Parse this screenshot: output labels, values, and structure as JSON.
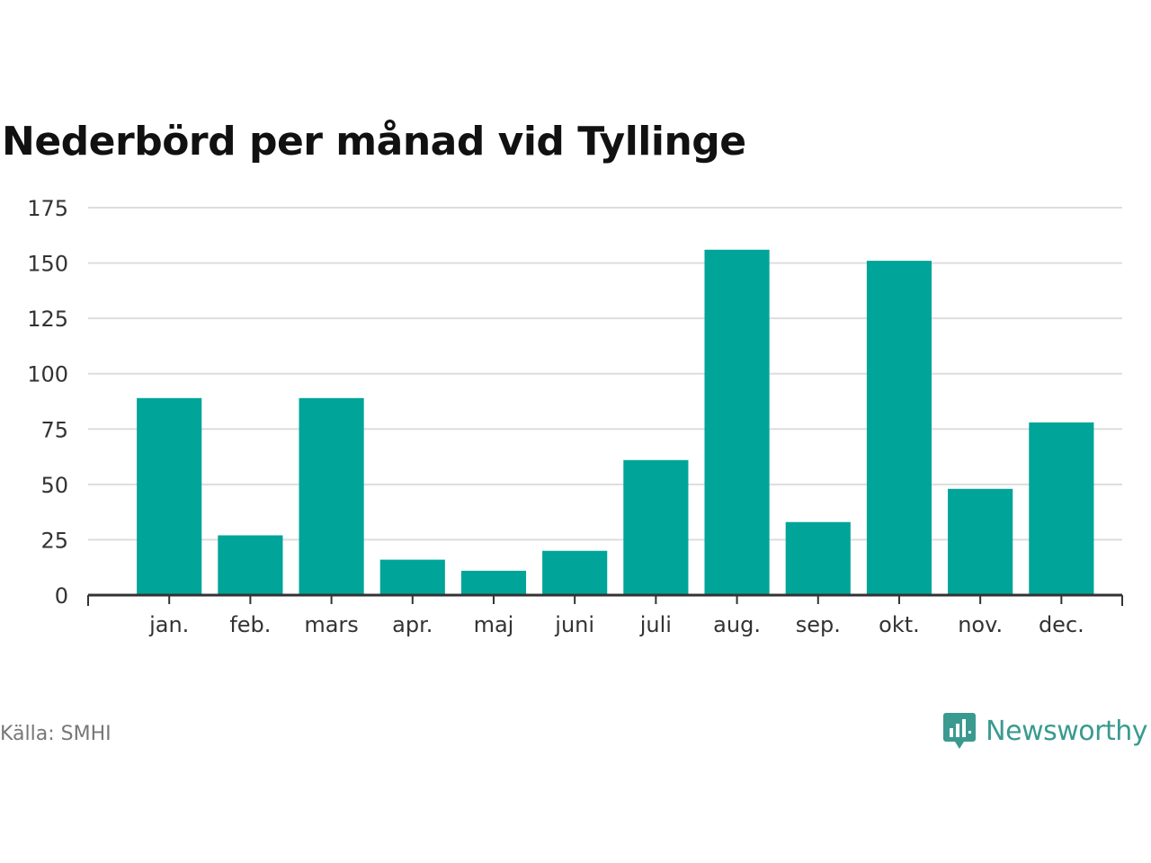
{
  "chart_data": {
    "type": "bar",
    "title": "Nederbörd per månad vid Tyllinge",
    "categories": [
      "jan.",
      "feb.",
      "mars",
      "apr.",
      "maj",
      "juni",
      "juli",
      "aug.",
      "sep.",
      "okt.",
      "nov.",
      "dec."
    ],
    "values": [
      89,
      27,
      89,
      16,
      11,
      20,
      61,
      156,
      33,
      151,
      48,
      78
    ],
    "yticks": [
      0,
      25,
      50,
      75,
      100,
      125,
      150,
      175
    ],
    "ylim": [
      0,
      175
    ],
    "xlabel": "",
    "ylabel": "",
    "grid": true,
    "bar_color": "#00a499",
    "grid_color": "#dddddd",
    "axis_color": "#333333"
  },
  "footer": {
    "source": "Källa: SMHI",
    "brand": "Newsworthy",
    "brand_color": "#3a9a90",
    "brand_icon": "newsworthy-logo-icon"
  }
}
